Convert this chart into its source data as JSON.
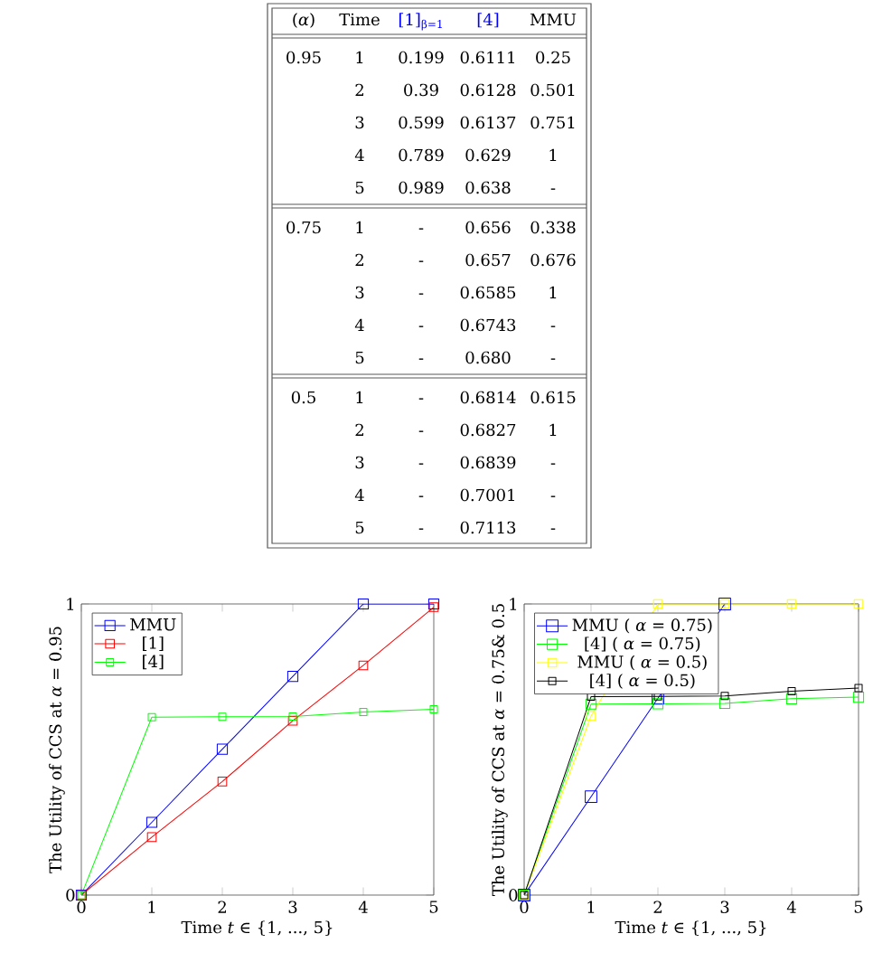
{
  "chart_data": [
    {
      "type": "other",
      "categories": [
        "(*α*)",
        "Time",
        "[1]$_{β=1}$",
        "[4]",
        "MMU"
      ],
      "annotations": [
        "0.95",
        "1",
        "0.199",
        "0.6111",
        "0.25",
        "2",
        "0.39",
        "0.6128",
        "0.501",
        "3",
        "0.599",
        "0.6137",
        "0.751",
        "4",
        "0.789",
        "0.629",
        "1",
        "5",
        "0.989",
        "0.638",
        "-",
        "0.75",
        "1",
        "-",
        "0.656",
        "0.338",
        "2",
        "-",
        "0.657",
        "0.676",
        "3",
        "-",
        "0.6585",
        "1",
        "4",
        "-",
        "0.6743",
        "-",
        "5",
        "-",
        "0.680",
        "-",
        "0.5",
        "1",
        "-",
        "0.6814",
        "0.615",
        "2",
        "-",
        "0.6827",
        "1",
        "3",
        "-",
        "0.6839",
        "-",
        "4",
        "-",
        "0.7001",
        "-",
        "5",
        "-",
        "0.7113",
        "-"
      ]
    },
    {
      "type": "line",
      "xlabel": "Time *t* ∈ {1, ..., 5}",
      "ylabel": "The Utility of CCS at *α* = 0.95",
      "x": [
        0,
        1,
        2,
        3,
        4,
        5
      ],
      "xlim": [
        0,
        5
      ],
      "ylim": [
        0,
        1
      ],
      "xticks": [
        0,
        1,
        2,
        3,
        4,
        5
      ],
      "yticks": [
        0,
        1
      ],
      "legend": "top left",
      "marker": "square",
      "line_style": "solid",
      "series": [
        {
          "name": "MMU",
          "color": "#0000ff",
          "values": [
            0,
            0.25,
            0.501,
            0.751,
            1,
            1
          ]
        },
        {
          "name": "[1]",
          "color": "#ff0000",
          "values": [
            0,
            0.199,
            0.39,
            0.599,
            0.789,
            0.989
          ]
        },
        {
          "name": "[4]",
          "color": "#00ff00",
          "values": [
            0,
            0.6111,
            0.6128,
            0.6137,
            0.629,
            0.638
          ]
        }
      ]
    },
    {
      "type": "line",
      "xlabel": "Time *t* ∈ {1, ..., 5}",
      "ylabel": "The Utility of CCS at *α* = 0.75& 0.5",
      "x": [
        0,
        1,
        2,
        3,
        4,
        5
      ],
      "xlim": [
        0,
        5
      ],
      "ylim": [
        0,
        1
      ],
      "xticks": [
        0,
        1,
        2,
        3,
        4,
        5
      ],
      "yticks": [
        0,
        1
      ],
      "legend": "top left",
      "marker": "square",
      "line_style": "solid",
      "series": [
        {
          "name": "MMU ( *α* = 0.75)",
          "color": "#0000ff",
          "values": [
            0,
            0.338,
            0.676,
            1,
            null,
            null
          ]
        },
        {
          "name": "[4] ( *α* = 0.75)",
          "color": "#00ff00",
          "values": [
            0,
            0.656,
            0.657,
            0.6585,
            0.6743,
            0.68
          ]
        },
        {
          "name": "MMU ( *α* = 0.5)",
          "color": "#ffff00",
          "values": [
            0,
            0.615,
            1,
            1,
            1,
            1
          ]
        },
        {
          "name": "[4] ( *α* = 0.5)",
          "color": "#000000",
          "values": [
            0,
            0.6814,
            0.6827,
            0.6839,
            0.7001,
            0.7113
          ]
        }
      ]
    }
  ]
}
